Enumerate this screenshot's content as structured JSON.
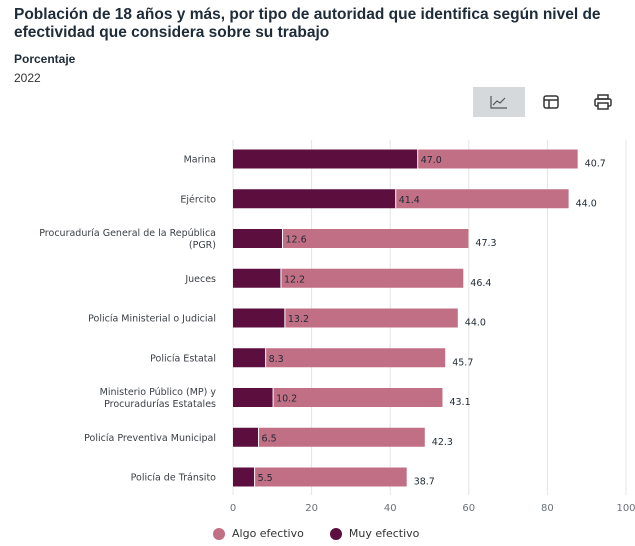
{
  "header": {
    "title": "Población de 18 años y más, por tipo de autoridad que identifica según nivel de efectividad que considera sobre su trabajo",
    "subtitle": "Porcentaje",
    "year": "2022"
  },
  "toolbar": {
    "buttons": [
      {
        "icon": "line-chart-icon",
        "active": true
      },
      {
        "icon": "table-icon",
        "active": false
      },
      {
        "icon": "print-icon",
        "active": false
      }
    ]
  },
  "colors": {
    "muy": "#5c0f3e",
    "algo": "#c16f84",
    "grid": "#e4e4e4"
  },
  "chart_data": {
    "type": "bar",
    "orientation": "horizontal",
    "stacked": true,
    "categories": [
      [
        "Marina"
      ],
      [
        "Ejército"
      ],
      [
        "Procuraduría General de la República",
        "(PGR)"
      ],
      [
        "Jueces"
      ],
      [
        "Policía Ministerial o Judicial"
      ],
      [
        "Policía Estatal"
      ],
      [
        "Ministerio Público (MP) y",
        "Procuradurías Estatales"
      ],
      [
        "Policía Preventiva Municipal"
      ],
      [
        "Policía de Tránsito"
      ]
    ],
    "series": [
      {
        "name": "Muy efectivo",
        "values": [
          47.0,
          41.4,
          12.6,
          12.2,
          13.2,
          8.3,
          10.2,
          6.5,
          5.5
        ],
        "labels": [
          "47.0",
          "41.4",
          "12.6",
          "12.2",
          "13.2",
          "8.3",
          "10.2",
          "6.5",
          "5.5"
        ]
      },
      {
        "name": "Algo efectivo",
        "values": [
          40.7,
          44.0,
          47.3,
          46.4,
          44.0,
          45.7,
          43.1,
          42.3,
          38.7
        ],
        "labels": [
          "40.7",
          "44.0",
          "47.3",
          "46.4",
          "44.0",
          "45.7",
          "43.1",
          "42.3",
          "38.7"
        ]
      }
    ],
    "xlim": [
      0,
      100
    ],
    "xticks": [
      "0",
      "20",
      "40",
      "60",
      "80",
      "100"
    ],
    "grid": true,
    "legend": {
      "position": "bottom",
      "items": [
        "Algo efectivo",
        "Muy efectivo"
      ]
    }
  }
}
